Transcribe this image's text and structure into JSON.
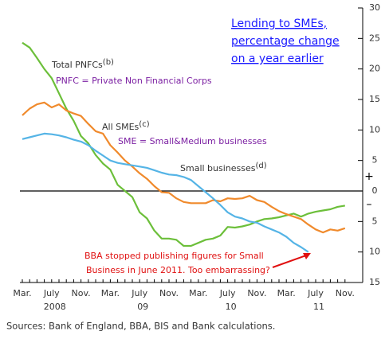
{
  "chart_data": {
    "type": "line",
    "title": [
      "Lending to SMEs,",
      "percentage change",
      "on a year earlier"
    ],
    "source": "Sources:  Bank of England, BBA, BIS and Bank calculations.",
    "categories": [
      "Mar.",
      null,
      null,
      null,
      "July",
      null,
      null,
      null,
      "Nov.",
      null,
      null,
      null,
      "Mar.",
      null,
      null,
      null,
      "July",
      null,
      null,
      null,
      "Nov.",
      null,
      null,
      null,
      "Mar.",
      null,
      null,
      null,
      "July",
      null,
      null,
      null,
      "Nov.",
      null,
      null,
      null,
      "Mar.",
      null,
      null,
      null,
      "July",
      null,
      null,
      null,
      "Nov."
    ],
    "years": [
      null,
      null,
      null,
      null,
      "2008",
      null,
      null,
      null,
      null,
      null,
      null,
      null,
      null,
      null,
      null,
      null,
      "09",
      null,
      null,
      null,
      null,
      null,
      null,
      null,
      null,
      null,
      null,
      null,
      "10",
      null,
      null,
      null,
      null,
      null,
      null,
      null,
      null,
      null,
      null,
      null,
      "11",
      null,
      null,
      null,
      null
    ],
    "series": [
      {
        "name": "Total PNFCs",
        "color": "#6cbf3a",
        "values": [
          24.3,
          23.5,
          21.8,
          20,
          18.5,
          16,
          13.5,
          11.5,
          9,
          7.8,
          5.9,
          4.5,
          3.5,
          1,
          0,
          -1,
          -3.5,
          -4.5,
          -6.5,
          -7.8,
          -7.8,
          -8,
          -9,
          -9,
          -8.5,
          -8,
          -7.8,
          -7.3,
          -5.9,
          -6,
          -5.8,
          -5.5,
          -5,
          -4.6,
          -4.5,
          -4.3,
          -4,
          -3.7,
          -4.2,
          -3.7,
          -3.4,
          -3.2,
          -3,
          -2.6,
          -2.4
        ]
      },
      {
        "name": "All SMEs",
        "color": "#f08a2c",
        "values": [
          12.4,
          13.5,
          14.2,
          14.5,
          13.7,
          14.2,
          13.2,
          12.7,
          12.3,
          11,
          9.8,
          9.4,
          7.5,
          6.3,
          5,
          4,
          2.9,
          2,
          0.8,
          -0.2,
          -0.3,
          -1.2,
          -1.8,
          -2,
          -2,
          -2,
          -1.5,
          -1.7,
          -1.2,
          -1.3,
          -1.2,
          -0.8,
          -1.5,
          -1.8,
          -2.6,
          -3.3,
          -3.8,
          -4.2,
          -4.6,
          -5.5,
          -6.3,
          -6.8,
          -6.3,
          -6.5,
          -6.1
        ]
      },
      {
        "name": "Small businesses",
        "color": "#55b4e6",
        "values": [
          8.5,
          8.8,
          9.1,
          9.4,
          9.3,
          9.1,
          8.8,
          8.4,
          8.1,
          7.5,
          6.6,
          5.8,
          5.0,
          4.6,
          4.4,
          4.2,
          4.0,
          3.8,
          3.4,
          3.0,
          2.7,
          2.6,
          2.3,
          1.8,
          0.8,
          -0.2,
          -1.2,
          -2.3,
          -3.5,
          -4.2,
          -4.5,
          -5,
          -5.2,
          -5.8,
          -6.3,
          -6.8,
          -7.5,
          -8.5,
          -9.2,
          -10,
          null,
          null,
          null,
          null,
          null
        ]
      }
    ],
    "ylim": [
      -15,
      30
    ],
    "yticks": [
      30,
      25,
      20,
      15,
      10,
      5,
      0,
      {
        "value": -5,
        "label": "5"
      },
      {
        "value": -10,
        "label": "10"
      },
      {
        "value": -15,
        "label": "15"
      }
    ],
    "y_axis_side": "right",
    "sign_labels": [
      "+",
      "–"
    ],
    "annotations": [
      {
        "text": "Total PNFCs",
        "sup": "(b)"
      },
      {
        "text": "PNFC = Private Non Financial Corps"
      },
      {
        "text": "All SMEs",
        "sup": "(c)"
      },
      {
        "text": "SME = Small&Medium businesses"
      },
      {
        "text": "Small businesses",
        "sup": "(d)"
      },
      {
        "text": "BBA stopped publishing figures for Small"
      },
      {
        "text": "Business in June 2011. Too embarrassing?"
      }
    ]
  }
}
